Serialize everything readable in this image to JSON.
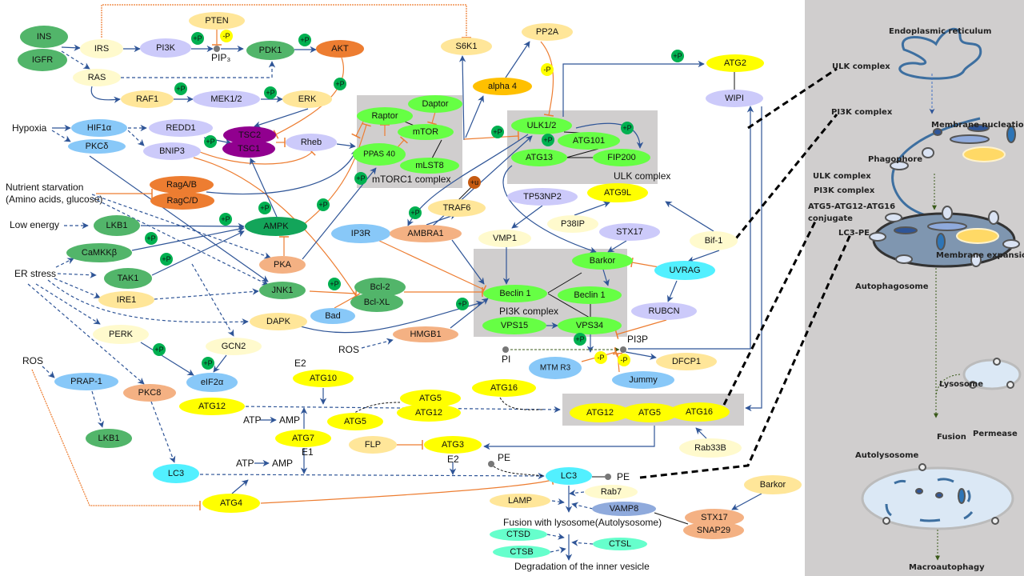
{
  "colors": {
    "green_node": "#52b56a",
    "dark_green": "#13a55a",
    "complex_green": "#66ff44",
    "yellow": "#ffff00",
    "light_yellow": "#fffacd",
    "tan": "#ffe699",
    "lavender": "#cccafa",
    "light_blue": "#88c8f8",
    "cyan": "#52f0ff",
    "orange": "#ed7d31",
    "salmon": "#f4b183",
    "purple": "#91008f",
    "gray_box": "#d0cece",
    "arrow_blue": "#2f5597",
    "inhibit_orange": "#ed7d31"
  },
  "nodes": {
    "ins": "INS",
    "igfr": "IGFR",
    "irs": "IRS",
    "pi3k": "PI3K",
    "pten": "PTEN",
    "pdk1": "PDK1",
    "akt": "AKT",
    "ras": "RAS",
    "raf1": "RAF1",
    "mek": "MEK1/2",
    "erk": "ERK",
    "hif1a": "HIF1α",
    "pkcd": "PKCδ",
    "redd1": "REDD1",
    "bnip3": "BNIP3",
    "tsc2": "TSC2",
    "tsc1": "TSC1",
    "rheb": "Rheb",
    "ragab": "RagA/B",
    "ragcd": "RagC/D",
    "lkb1": "LKB1",
    "ampk": "AMPK",
    "camkkb": "CaMKKβ",
    "pka": "PKA",
    "tak1": "TAK1",
    "ire1": "IRE1",
    "jnk1": "JNK1",
    "bcl2": "Bcl-2",
    "bclxl": "Bcl-XL",
    "bad": "Bad",
    "dapk": "DAPK",
    "perk": "PERK",
    "gcn2": "GCN2",
    "eif2a": "eIF2α",
    "prap1": "PRAP-1",
    "pkc8": "PKC8",
    "lkb1b": "LKB1",
    "atg12a": "ATG12",
    "atg10": "ATG10",
    "atg7": "ATG7",
    "atg5a": "ATG5",
    "lc3a": "LC3",
    "atg4": "ATG4",
    "flp": "FLP",
    "atg3": "ATG3",
    "atg5b": "ATG5",
    "atg12b": "ATG12",
    "atg16a": "ATG16",
    "hmgb1": "HMGB1",
    "ip3r": "IP3R",
    "ambra1": "AMBRA1",
    "traf6": "TRAF6",
    "s6k1": "S6K1",
    "pp2a": "PP2A",
    "alpha4": "alpha 4",
    "atg2": "ATG2",
    "wipi": "WIPI",
    "raptor": "Raptor",
    "daptor": "Daptor",
    "mtor": "mTOR",
    "ppas40": "PPAS 40",
    "mlst8": "mLST8",
    "ulk12": "ULK1/2",
    "atg101": "ATG101",
    "atg13": "ATG13",
    "fip200": "FIP200",
    "tp53np2": "TP53NP2",
    "atg9l": "ATG9L",
    "p38ip": "P38IP",
    "vmp1": "VMP1",
    "stx17a": "STX17",
    "bif1": "Bif-1",
    "uvrag": "UVRAG",
    "rubcn": "RUBCN",
    "barkor": "Barkor",
    "beclin1a": "Beclin 1",
    "beclin1b": "Beclin 1",
    "vps15": "VPS15",
    "vps34": "VPS34",
    "mtmr3": "MTM R3",
    "dfcp1": "DFCP1",
    "jummy": "Jummy",
    "atg12c": "ATG12",
    "atg5c": "ATG5",
    "atg16c": "ATG16",
    "rab33b": "Rab33B",
    "lc3b": "LC3",
    "rab7": "Rab7",
    "lamp": "LAMP",
    "vamp8": "VAMP8",
    "barkor2": "Barkor",
    "stx17b": "STX17",
    "snap29": "SNAP29",
    "ctsd": "CTSD",
    "ctsb": "CTSB",
    "ctsl": "CTSL"
  },
  "labels": {
    "hypoxia": "Hypoxia",
    "nutrient1": "Nutrient starvation",
    "nutrient2": "(Amino acids, glucose)",
    "low_energy": "Low energy",
    "er_stress": "ER stress",
    "ros1": "ROS",
    "ros2": "ROS",
    "mtorc1_complex": "mTORC1 complex",
    "ulk_complex": "ULK complex",
    "pi3k_complex": "PI3K complex",
    "pip3": "PIP₃",
    "e2a": "E2",
    "e1": "E1",
    "e2b": "E2",
    "atp1": "ATP",
    "amp1": "AMP",
    "atp2": "ATP",
    "amp2": "AMP",
    "pe1": "PE",
    "pe2": "PE",
    "pi": "PI",
    "pi3p": "PI3P",
    "fusion": "Fusion with lysosome(Autolysosome)",
    "degradation": "Degradation of the inner vesicle"
  },
  "badges": {
    "plus_p": "+P",
    "minus_p": "-P",
    "plus_u": "+u"
  },
  "panel": {
    "er": "Endoplasmic reticulum",
    "ulk_complex": "ULK complex",
    "pi3k_complex": "PI3K complex",
    "membrane_nucleation": "Membrane nucleation",
    "phagophore": "Phagophore",
    "ulk_complex2": "ULK complex",
    "pi3k_complex2": "PI3K complex",
    "conjugate1": "ATG5-ATG12-ATG16",
    "conjugate2": "conjugate",
    "lc3pe": "LC3-PE",
    "membrane_expansion": "Membrane expansion",
    "autophagosome": "Autophagosome",
    "lysosome": "Lysosome",
    "fusion": "Fusion",
    "permease": "Permease",
    "autolysosome": "Autolysosome",
    "macroautophagy": "Macroautophagy"
  }
}
